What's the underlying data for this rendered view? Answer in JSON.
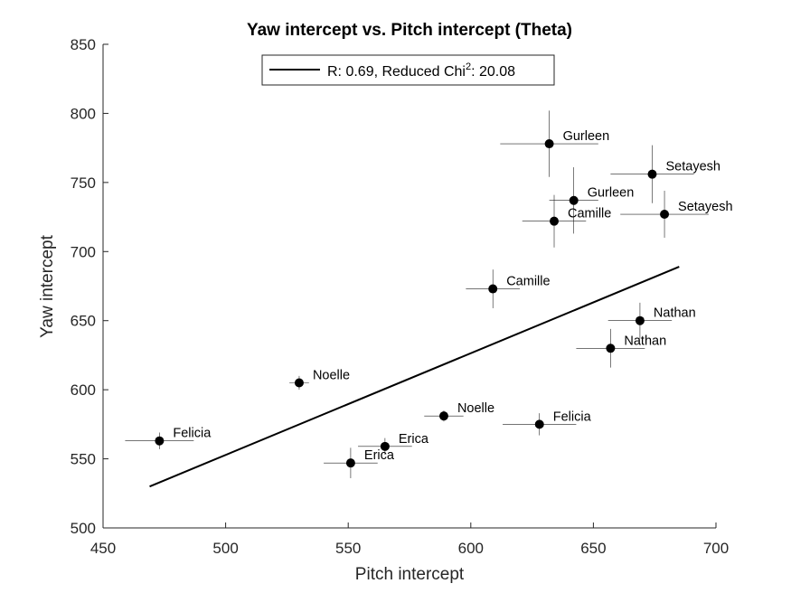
{
  "chart_data": {
    "type": "scatter",
    "title": "Yaw intercept vs. Pitch intercept (Theta)",
    "xlabel": "Pitch intercept",
    "ylabel": "Yaw intercept",
    "xlim": [
      450,
      700
    ],
    "ylim": [
      500,
      850
    ],
    "xticks": [
      450,
      500,
      550,
      600,
      650,
      700
    ],
    "yticks": [
      500,
      550,
      600,
      650,
      700,
      750,
      800,
      850
    ],
    "grid": false,
    "legend": {
      "position": "top-center",
      "label_main": "R: 0.69, Reduced Chi",
      "label_sup": "2",
      "label_tail": ": 20.08"
    },
    "fit_line": {
      "x": [
        469,
        685
      ],
      "y": [
        530,
        689
      ]
    },
    "points": [
      {
        "label": "Felicia",
        "x": 473,
        "y": 563,
        "xerr": 14,
        "yerr": 6
      },
      {
        "label": "Noelle",
        "x": 530,
        "y": 605,
        "xerr": 4,
        "yerr": 5
      },
      {
        "label": "Erica",
        "x": 551,
        "y": 547,
        "xerr": 11,
        "yerr": 11
      },
      {
        "label": "Erica",
        "x": 565,
        "y": 559,
        "xerr": 11,
        "yerr": 6
      },
      {
        "label": "Noelle",
        "x": 589,
        "y": 581,
        "xerr": 8,
        "yerr": 4
      },
      {
        "label": "Camille",
        "x": 609,
        "y": 673,
        "xerr": 11,
        "yerr": 14
      },
      {
        "label": "Felicia",
        "x": 628,
        "y": 575,
        "xerr": 15,
        "yerr": 8
      },
      {
        "label": "Gurleen",
        "x": 632,
        "y": 778,
        "xerr": 20,
        "yerr": 24
      },
      {
        "label": "Camille",
        "x": 634,
        "y": 722,
        "xerr": 13,
        "yerr": 19
      },
      {
        "label": "Gurleen",
        "x": 642,
        "y": 737,
        "xerr": 10,
        "yerr": 24
      },
      {
        "label": "Nathan",
        "x": 657,
        "y": 630,
        "xerr": 14,
        "yerr": 14
      },
      {
        "label": "Nathan",
        "x": 669,
        "y": 650,
        "xerr": 13,
        "yerr": 13
      },
      {
        "label": "Setayesh",
        "x": 674,
        "y": 756,
        "xerr": 17,
        "yerr": 21
      },
      {
        "label": "Setayesh",
        "x": 679,
        "y": 727,
        "xerr": 18,
        "yerr": 17
      }
    ]
  }
}
